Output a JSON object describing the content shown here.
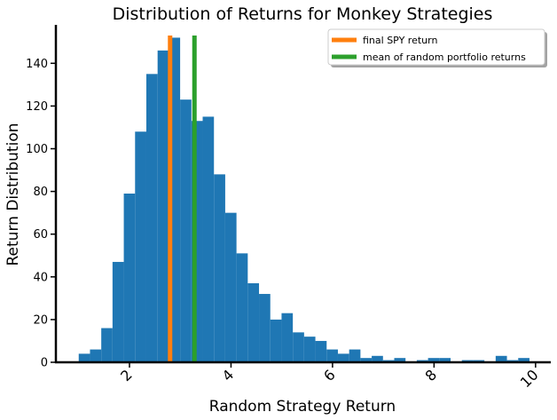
{
  "chart_data": {
    "type": "bar",
    "title": "Distribution of Returns for Monkey Strategies",
    "xlabel": "Random Strategy Return",
    "ylabel": "Return Distribution",
    "xlim": [
      0.55,
      10.3
    ],
    "ylim": [
      0,
      158
    ],
    "xticks": [
      2,
      4,
      6,
      8,
      10
    ],
    "yticks": [
      0,
      20,
      40,
      60,
      80,
      100,
      120,
      140
    ],
    "bin_start": 1.0,
    "bin_width": 0.222,
    "counts": [
      4,
      6,
      16,
      47,
      79,
      108,
      135,
      146,
      152,
      123,
      113,
      115,
      88,
      70,
      51,
      37,
      32,
      20,
      23,
      14,
      12,
      10,
      6,
      4,
      6,
      2,
      3,
      1,
      2,
      0,
      1,
      2,
      2,
      0,
      1,
      1,
      0,
      3,
      1,
      2
    ],
    "bar_color": "#1f77b4",
    "vlines": [
      {
        "name": "final SPY return",
        "x": 2.8,
        "color": "#ff7f0e"
      },
      {
        "name": "mean of random portfolio returns",
        "x": 3.28,
        "color": "#2ca02c"
      }
    ],
    "legend_position": "upper right",
    "grid": false
  }
}
